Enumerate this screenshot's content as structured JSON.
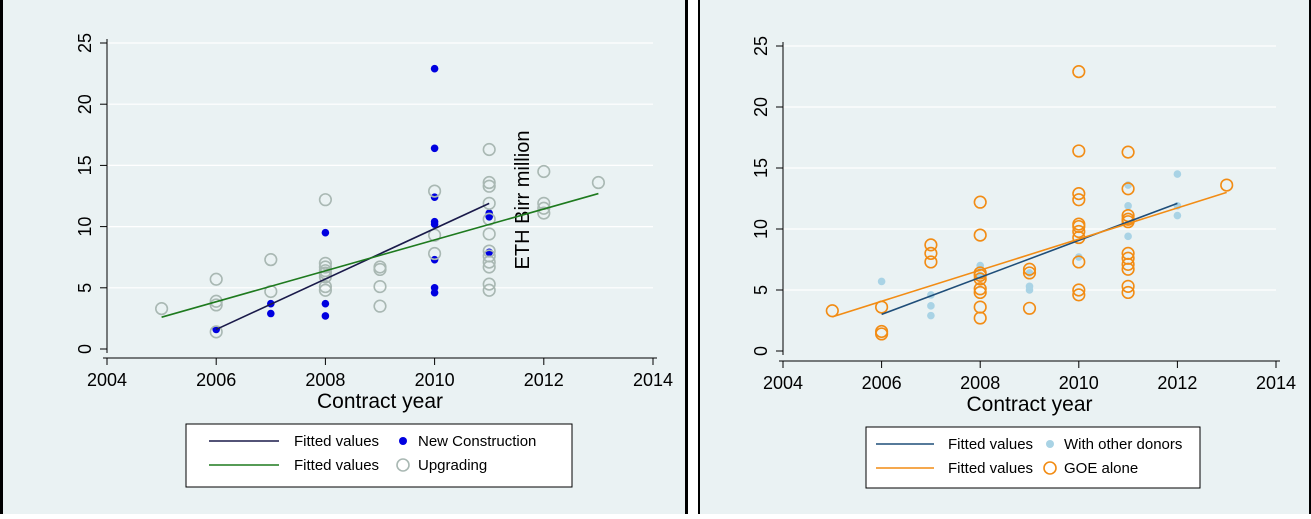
{
  "colors": {
    "background": "#eaf2f3",
    "grid": "#ffffff",
    "axis": "#000000",
    "new_construction": "#0000e0",
    "upgrading": "#a9b8b3",
    "fit_new": "#1a1a4a",
    "fit_upgrading": "#1e7a1e",
    "with_donors": "#a9d3e5",
    "goe_alone": "#f28c14",
    "fit_donors": "#1f4e79",
    "fit_goe": "#f28c14"
  },
  "chart_data": [
    {
      "type": "scatter",
      "xlabel": "Contract year",
      "ylabel": "",
      "annotation": "ETH Birr million",
      "xlim": [
        2004,
        2014
      ],
      "ylim": [
        0,
        25
      ],
      "x_ticks": [
        "2004",
        "2006",
        "2008",
        "2010",
        "2012",
        "2014"
      ],
      "y_ticks": [
        "0",
        "5",
        "10",
        "15",
        "20",
        "25"
      ],
      "grid": true,
      "legend": "bottom",
      "series": [
        {
          "name": "New Construction",
          "kind": "points",
          "marker": "filled",
          "color_key": "new_construction",
          "points": [
            [
              2006,
              1.6
            ],
            [
              2007,
              2.9
            ],
            [
              2007,
              3.7
            ],
            [
              2008,
              2.7
            ],
            [
              2008,
              3.7
            ],
            [
              2008,
              9.5
            ],
            [
              2010,
              4.6
            ],
            [
              2010,
              5.0
            ],
            [
              2010,
              7.3
            ],
            [
              2010,
              10.2
            ],
            [
              2010,
              10.4
            ],
            [
              2010,
              12.4
            ],
            [
              2010,
              16.4
            ],
            [
              2010,
              22.9
            ],
            [
              2011,
              7.9
            ],
            [
              2011,
              10.8
            ],
            [
              2011,
              11.1
            ]
          ]
        },
        {
          "name": "Upgrading",
          "kind": "points",
          "marker": "hollow",
          "color_key": "upgrading",
          "points": [
            [
              2005,
              3.3
            ],
            [
              2006,
              1.4
            ],
            [
              2006,
              3.6
            ],
            [
              2006,
              3.9
            ],
            [
              2006,
              5.7
            ],
            [
              2007,
              4.7
            ],
            [
              2007,
              7.3
            ],
            [
              2008,
              4.8
            ],
            [
              2008,
              5.1
            ],
            [
              2008,
              5.9
            ],
            [
              2008,
              6.2
            ],
            [
              2008,
              6.4
            ],
            [
              2008,
              6.7
            ],
            [
              2008,
              7.0
            ],
            [
              2008,
              12.2
            ],
            [
              2009,
              3.5
            ],
            [
              2009,
              5.1
            ],
            [
              2009,
              6.5
            ],
            [
              2009,
              6.7
            ],
            [
              2010,
              7.8
            ],
            [
              2010,
              9.3
            ],
            [
              2010,
              12.9
            ],
            [
              2011,
              4.8
            ],
            [
              2011,
              5.3
            ],
            [
              2011,
              6.7
            ],
            [
              2011,
              7.1
            ],
            [
              2011,
              7.6
            ],
            [
              2011,
              8.0
            ],
            [
              2011,
              9.4
            ],
            [
              2011,
              10.6
            ],
            [
              2011,
              11.9
            ],
            [
              2011,
              13.3
            ],
            [
              2011,
              13.6
            ],
            [
              2011,
              16.3
            ],
            [
              2012,
              11.1
            ],
            [
              2012,
              11.5
            ],
            [
              2012,
              11.9
            ],
            [
              2012,
              14.5
            ],
            [
              2013,
              13.6
            ]
          ]
        },
        {
          "name": "Fitted values",
          "kind": "line",
          "color_key": "fit_new",
          "points": [
            [
              2006,
              1.6
            ],
            [
              2011,
              11.9
            ]
          ]
        },
        {
          "name": "Fitted values",
          "kind": "line",
          "color_key": "fit_upgrading",
          "points": [
            [
              2005,
              2.6
            ],
            [
              2013,
              12.7
            ]
          ]
        }
      ],
      "legend_entries": [
        {
          "label": "Fitted values",
          "series": 2
        },
        {
          "label": "New Construction",
          "series": 0
        },
        {
          "label": "Fitted values",
          "series": 3
        },
        {
          "label": "Upgrading",
          "series": 1
        }
      ]
    },
    {
      "type": "scatter",
      "xlabel": "Contract year",
      "ylabel": "",
      "xlim": [
        2004,
        2014
      ],
      "ylim": [
        0,
        25
      ],
      "x_ticks": [
        "2004",
        "2006",
        "2008",
        "2010",
        "2012",
        "2014"
      ],
      "y_ticks": [
        "0",
        "5",
        "10",
        "15",
        "20",
        "25"
      ],
      "grid": true,
      "legend": "bottom",
      "series": [
        {
          "name": "With other donors",
          "kind": "points",
          "marker": "filled",
          "color_key": "with_donors",
          "points": [
            [
              2006,
              5.7
            ],
            [
              2007,
              2.9
            ],
            [
              2007,
              3.7
            ],
            [
              2007,
              4.6
            ],
            [
              2008,
              6.2
            ],
            [
              2008,
              7.0
            ],
            [
              2009,
              5.0
            ],
            [
              2009,
              5.3
            ],
            [
              2009,
              6.4
            ],
            [
              2010,
              7.7
            ],
            [
              2011,
              9.4
            ],
            [
              2011,
              11.9
            ],
            [
              2011,
              13.6
            ],
            [
              2012,
              11.1
            ],
            [
              2012,
              11.9
            ],
            [
              2012,
              14.5
            ]
          ]
        },
        {
          "name": "GOE alone",
          "kind": "points",
          "marker": "hollow",
          "color_key": "goe_alone",
          "points": [
            [
              2005,
              3.3
            ],
            [
              2006,
              1.4
            ],
            [
              2006,
              1.6
            ],
            [
              2006,
              3.6
            ],
            [
              2007,
              7.3
            ],
            [
              2007,
              8.0
            ],
            [
              2007,
              8.7
            ],
            [
              2008,
              2.7
            ],
            [
              2008,
              3.6
            ],
            [
              2008,
              4.8
            ],
            [
              2008,
              5.1
            ],
            [
              2008,
              5.9
            ],
            [
              2008,
              6.2
            ],
            [
              2008,
              6.4
            ],
            [
              2008,
              9.5
            ],
            [
              2008,
              12.2
            ],
            [
              2009,
              3.5
            ],
            [
              2009,
              6.4
            ],
            [
              2009,
              6.7
            ],
            [
              2010,
              4.6
            ],
            [
              2010,
              5.0
            ],
            [
              2010,
              7.3
            ],
            [
              2010,
              9.3
            ],
            [
              2010,
              9.8
            ],
            [
              2010,
              10.2
            ],
            [
              2010,
              10.4
            ],
            [
              2010,
              12.4
            ],
            [
              2010,
              12.9
            ],
            [
              2010,
              16.4
            ],
            [
              2010,
              22.9
            ],
            [
              2011,
              4.8
            ],
            [
              2011,
              5.3
            ],
            [
              2011,
              6.7
            ],
            [
              2011,
              7.1
            ],
            [
              2011,
              7.6
            ],
            [
              2011,
              8.0
            ],
            [
              2011,
              10.6
            ],
            [
              2011,
              10.8
            ],
            [
              2011,
              11.1
            ],
            [
              2011,
              13.3
            ],
            [
              2011,
              16.3
            ],
            [
              2013,
              13.6
            ]
          ]
        },
        {
          "name": "Fitted values",
          "kind": "line",
          "color_key": "fit_donors",
          "points": [
            [
              2006,
              3.0
            ],
            [
              2012,
              12.1
            ]
          ]
        },
        {
          "name": "Fitted values",
          "kind": "line",
          "color_key": "fit_goe",
          "points": [
            [
              2005,
              2.8
            ],
            [
              2013,
              13.0
            ]
          ]
        }
      ],
      "legend_entries": [
        {
          "label": "Fitted values",
          "series": 2
        },
        {
          "label": "With other donors",
          "series": 0
        },
        {
          "label": "Fitted values",
          "series": 3
        },
        {
          "label": "GOE alone",
          "series": 1
        }
      ]
    }
  ]
}
